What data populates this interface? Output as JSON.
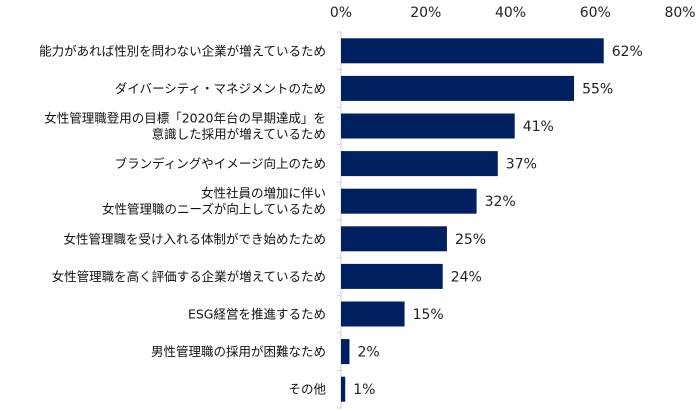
{
  "chart_data": {
    "type": "bar",
    "orientation": "horizontal",
    "title": "",
    "xlabel": "",
    "ylabel": "",
    "xlim": [
      0,
      80
    ],
    "x_ticks": [
      "0%",
      "20%",
      "40%",
      "60%",
      "80%"
    ],
    "x_tick_values": [
      0,
      20,
      40,
      60,
      80
    ],
    "grid": false,
    "bar_color": "#002060",
    "categories": [
      [
        "能力があれば性別を問わない企業が増えているため"
      ],
      [
        "ダイバーシティ・マネジメントのため"
      ],
      [
        "女性管理職登用の目標「2020年台の早期達成」を",
        "意識した採用が増えているため"
      ],
      [
        "ブランディングやイメージ向上のため"
      ],
      [
        "女性社員の増加に伴い",
        "女性管理職のニーズが向上しているため"
      ],
      [
        "女性管理職を受け入れる体制ができ始めたため"
      ],
      [
        "女性管理職を高く評価する企業が増えているため"
      ],
      [
        "ESG経営を推進するため"
      ],
      [
        "男性管理職の採用が困難なため"
      ],
      [
        "その他"
      ]
    ],
    "values": [
      62,
      55,
      41,
      37,
      32,
      25,
      24,
      15,
      2,
      1
    ],
    "data_labels": [
      "62%",
      "55%",
      "41%",
      "37%",
      "32%",
      "25%",
      "24%",
      "15%",
      "2%",
      "1%"
    ]
  }
}
